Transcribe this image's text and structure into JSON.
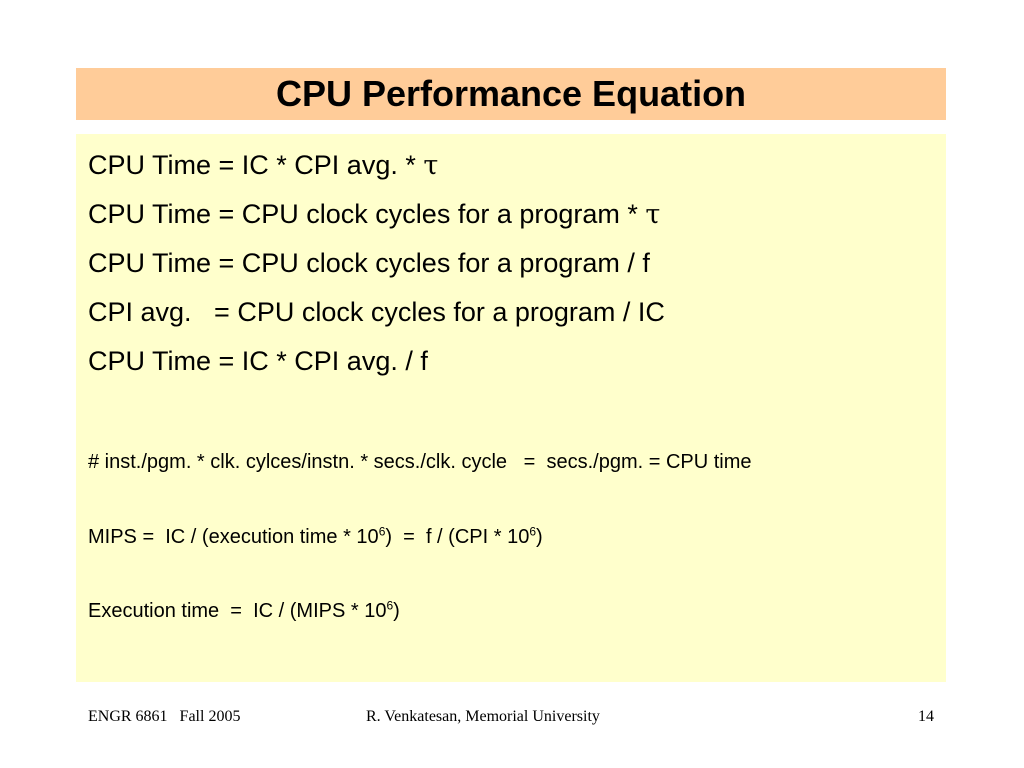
{
  "slide": {
    "title": "CPU Performance Equation",
    "lines": [
      {
        "text": "CPU Time = IC * CPI avg. * ",
        "symbol": "τ"
      },
      {
        "text": "CPU Time = CPU clock cycles for a program * ",
        "symbol": "τ"
      },
      {
        "text": "CPU Time = CPU clock cycles for a program / f"
      },
      {
        "text": "CPI avg.   = CPU clock cycles for a program / IC"
      },
      {
        "text": "CPU Time = IC * CPI avg. / f"
      }
    ],
    "small_lines": [
      {
        "text": "# inst./pgm. * clk. cylces/instn. * secs./clk. cycle   =  secs./pgm. = CPU time"
      },
      {
        "part1": "MIPS =  IC / (execution time * 10",
        "sup1": "6",
        "part2": ")  =  f / (CPI * 10",
        "sup2": "6",
        "part3": ")"
      },
      {
        "part1": "Execution time  =  IC / (MIPS * 10",
        "sup1": "6",
        "part2": ")"
      }
    ]
  },
  "footer": {
    "course": "ENGR 6861   Fall 2005",
    "author": "R. Venkatesan, Memorial University",
    "page": "14"
  },
  "colors": {
    "title_background": "#ffcc99",
    "body_background": "#ffffcc"
  }
}
